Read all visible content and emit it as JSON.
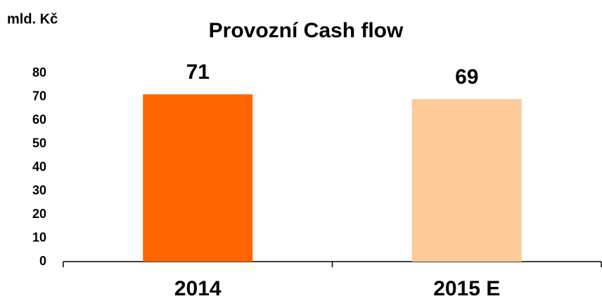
{
  "chart_data": {
    "type": "bar",
    "title": "Provozní Cash flow",
    "y_label": "mld. Kč",
    "categories": [
      "2014",
      "2015 E"
    ],
    "values": [
      71,
      69
    ],
    "colors": [
      "#ff6600",
      "#fdca98"
    ],
    "ylim": [
      0,
      80
    ],
    "yticks": [
      0,
      10,
      20,
      30,
      40,
      50,
      60,
      70,
      80
    ],
    "grid": false
  }
}
